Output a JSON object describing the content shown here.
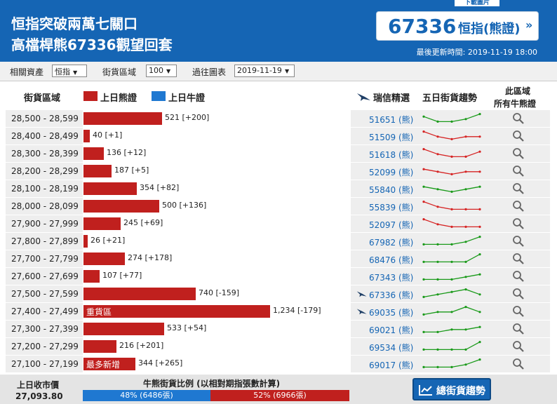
{
  "header": {
    "title_line1": "恒指突破兩萬七關口",
    "title_line2": "高檔桿熊67336觀望回套",
    "download_label": "下載圖片",
    "index_value": "67336",
    "index_label": "恒指(熊證)",
    "index_arrow": "»",
    "updated": "最後更新時間: 2019-11-19 18:00"
  },
  "filters": {
    "asset_label": "相關資產",
    "asset_value": "恒指",
    "zone_label": "街貨區域",
    "zone_value": "100",
    "history_label": "過往圖表",
    "history_value": "2019-11-19"
  },
  "columns": {
    "zone": "街貨區域",
    "bear_legend": "上日熊證",
    "bull_legend": "上日牛證",
    "pick": "瑞信精選",
    "trend": "五日街貨趨勢",
    "all_line1": "此區域",
    "all_line2": "所有牛熊證"
  },
  "colors": {
    "header_blue": "#1565b4",
    "bear_red": "#c0201e",
    "bull_blue": "#1f78d1",
    "spark_up": "#1a9a1a",
    "spark_down": "#d62424"
  },
  "rows": [
    {
      "range": "28,500 - 28,599",
      "value": 521,
      "value_text": "521 [+200]",
      "tag": "",
      "code": "51651 (熊)",
      "featured": false,
      "trend": "up",
      "spark": [
        4,
        2,
        2,
        3,
        5
      ]
    },
    {
      "range": "28,400 - 28,499",
      "value": 40,
      "value_text": "40 [+1]",
      "tag": "",
      "code": "51509 (熊)",
      "featured": false,
      "trend": "down",
      "spark": [
        5,
        3,
        2,
        3,
        3
      ]
    },
    {
      "range": "28,300 - 28,399",
      "value": 136,
      "value_text": "136 [+12]",
      "tag": "",
      "code": "51618 (熊)",
      "featured": false,
      "trend": "down",
      "spark": [
        5,
        3,
        2,
        2,
        4
      ]
    },
    {
      "range": "28,200 - 28,299",
      "value": 187,
      "value_text": "187 [+5]",
      "tag": "",
      "code": "52099 (熊)",
      "featured": false,
      "trend": "down",
      "spark": [
        4,
        3,
        2,
        3,
        3
      ]
    },
    {
      "range": "28,100 - 28,199",
      "value": 354,
      "value_text": "354 [+82]",
      "tag": "",
      "code": "55840 (熊)",
      "featured": false,
      "trend": "up",
      "spark": [
        4,
        3,
        2,
        3,
        4
      ]
    },
    {
      "range": "28,000 - 28,099",
      "value": 500,
      "value_text": "500 [+136]",
      "tag": "",
      "code": "55839 (熊)",
      "featured": false,
      "trend": "down",
      "spark": [
        5,
        3,
        2,
        2,
        2
      ]
    },
    {
      "range": "27,900 - 27,999",
      "value": 245,
      "value_text": "245 [+69]",
      "tag": "",
      "code": "52097 (熊)",
      "featured": false,
      "trend": "down",
      "spark": [
        5,
        3,
        2,
        2,
        2
      ]
    },
    {
      "range": "27,800 - 27,899",
      "value": 26,
      "value_text": "26 [+21]",
      "tag": "",
      "code": "67982 (熊)",
      "featured": false,
      "trend": "up",
      "spark": [
        2,
        2,
        2,
        3,
        5
      ]
    },
    {
      "range": "27,700 - 27,799",
      "value": 274,
      "value_text": "274 [+178]",
      "tag": "",
      "code": "68476 (熊)",
      "featured": false,
      "trend": "up",
      "spark": [
        2,
        2,
        2,
        2,
        5
      ]
    },
    {
      "range": "27,600 - 27,699",
      "value": 107,
      "value_text": "107 [+77]",
      "tag": "",
      "code": "67343 (熊)",
      "featured": false,
      "trend": "up",
      "spark": [
        2,
        2,
        2,
        3,
        4
      ]
    },
    {
      "range": "27,500 - 27,599",
      "value": 740,
      "value_text": "740 [-159]",
      "tag": "",
      "code": "67336 (熊)",
      "featured": true,
      "trend": "up",
      "spark": [
        2,
        3,
        4,
        5,
        3
      ]
    },
    {
      "range": "27,400 - 27,499",
      "value": 1234,
      "value_text": "1,234 [-179]",
      "tag": "重貨區",
      "code": "69035 (熊)",
      "featured": true,
      "trend": "up",
      "spark": [
        2,
        3,
        3,
        5,
        3
      ]
    },
    {
      "range": "27,300 - 27,399",
      "value": 533,
      "value_text": "533 [+54]",
      "tag": "",
      "code": "69021 (熊)",
      "featured": false,
      "trend": "up",
      "spark": [
        2,
        2,
        3,
        3,
        4
      ]
    },
    {
      "range": "27,200 - 27,299",
      "value": 216,
      "value_text": "216 [+201]",
      "tag": "",
      "code": "69534 (熊)",
      "featured": false,
      "trend": "up",
      "spark": [
        2,
        2,
        2,
        2,
        5
      ]
    },
    {
      "range": "27,100 - 27,199",
      "value": 344,
      "value_text": "344 [+265]",
      "tag": "最多新增",
      "code": "69017 (熊)",
      "featured": false,
      "trend": "up",
      "spark": [
        2,
        2,
        2,
        3,
        5
      ]
    }
  ],
  "footer": {
    "close_label": "上日收市價",
    "close_value": "27,093.80",
    "ratio_title": "牛熊街貨比例 (以相對期指張數計算)",
    "bull_fraction": 0.48,
    "bull_text": "48% (6486張)",
    "bear_text": "52% (6966張)",
    "trend_button": "總街貨趨勢"
  }
}
